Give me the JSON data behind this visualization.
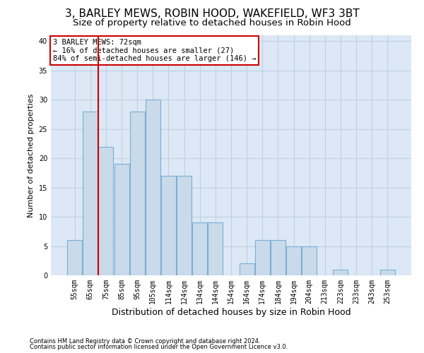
{
  "title": "3, BARLEY MEWS, ROBIN HOOD, WAKEFIELD, WF3 3BT",
  "subtitle": "Size of property relative to detached houses in Robin Hood",
  "xlabel": "Distribution of detached houses by size in Robin Hood",
  "ylabel": "Number of detached properties",
  "footnote1": "Contains HM Land Registry data © Crown copyright and database right 2024.",
  "footnote2": "Contains public sector information licensed under the Open Government Licence v3.0.",
  "annotation_title": "3 BARLEY MEWS: 72sqm",
  "annotation_line2": "← 16% of detached houses are smaller (27)",
  "annotation_line3": "84% of semi-detached houses are larger (146) →",
  "bar_values": [
    6,
    28,
    22,
    19,
    28,
    30,
    17,
    17,
    9,
    9,
    0,
    2,
    6,
    6,
    5,
    5,
    0,
    1,
    0,
    0,
    1
  ],
  "categories": [
    "55sqm",
    "65sqm",
    "75sqm",
    "85sqm",
    "95sqm",
    "105sqm",
    "114sqm",
    "124sqm",
    "134sqm",
    "144sqm",
    "154sqm",
    "164sqm",
    "174sqm",
    "184sqm",
    "194sqm",
    "204sqm",
    "213sqm",
    "223sqm",
    "233sqm",
    "243sqm",
    "253sqm"
  ],
  "bar_color": "#c9daea",
  "bar_edge_color": "#7bafd4",
  "vline_color": "#cc0000",
  "annotation_box_color": "#cc0000",
  "ylim": [
    0,
    41
  ],
  "yticks": [
    0,
    5,
    10,
    15,
    20,
    25,
    30,
    35,
    40
  ],
  "grid_color": "#c0cfe0",
  "bg_color": "#dce8f5",
  "title_fontsize": 11,
  "subtitle_fontsize": 9.5,
  "tick_fontsize": 7,
  "ylabel_fontsize": 8,
  "xlabel_fontsize": 9
}
